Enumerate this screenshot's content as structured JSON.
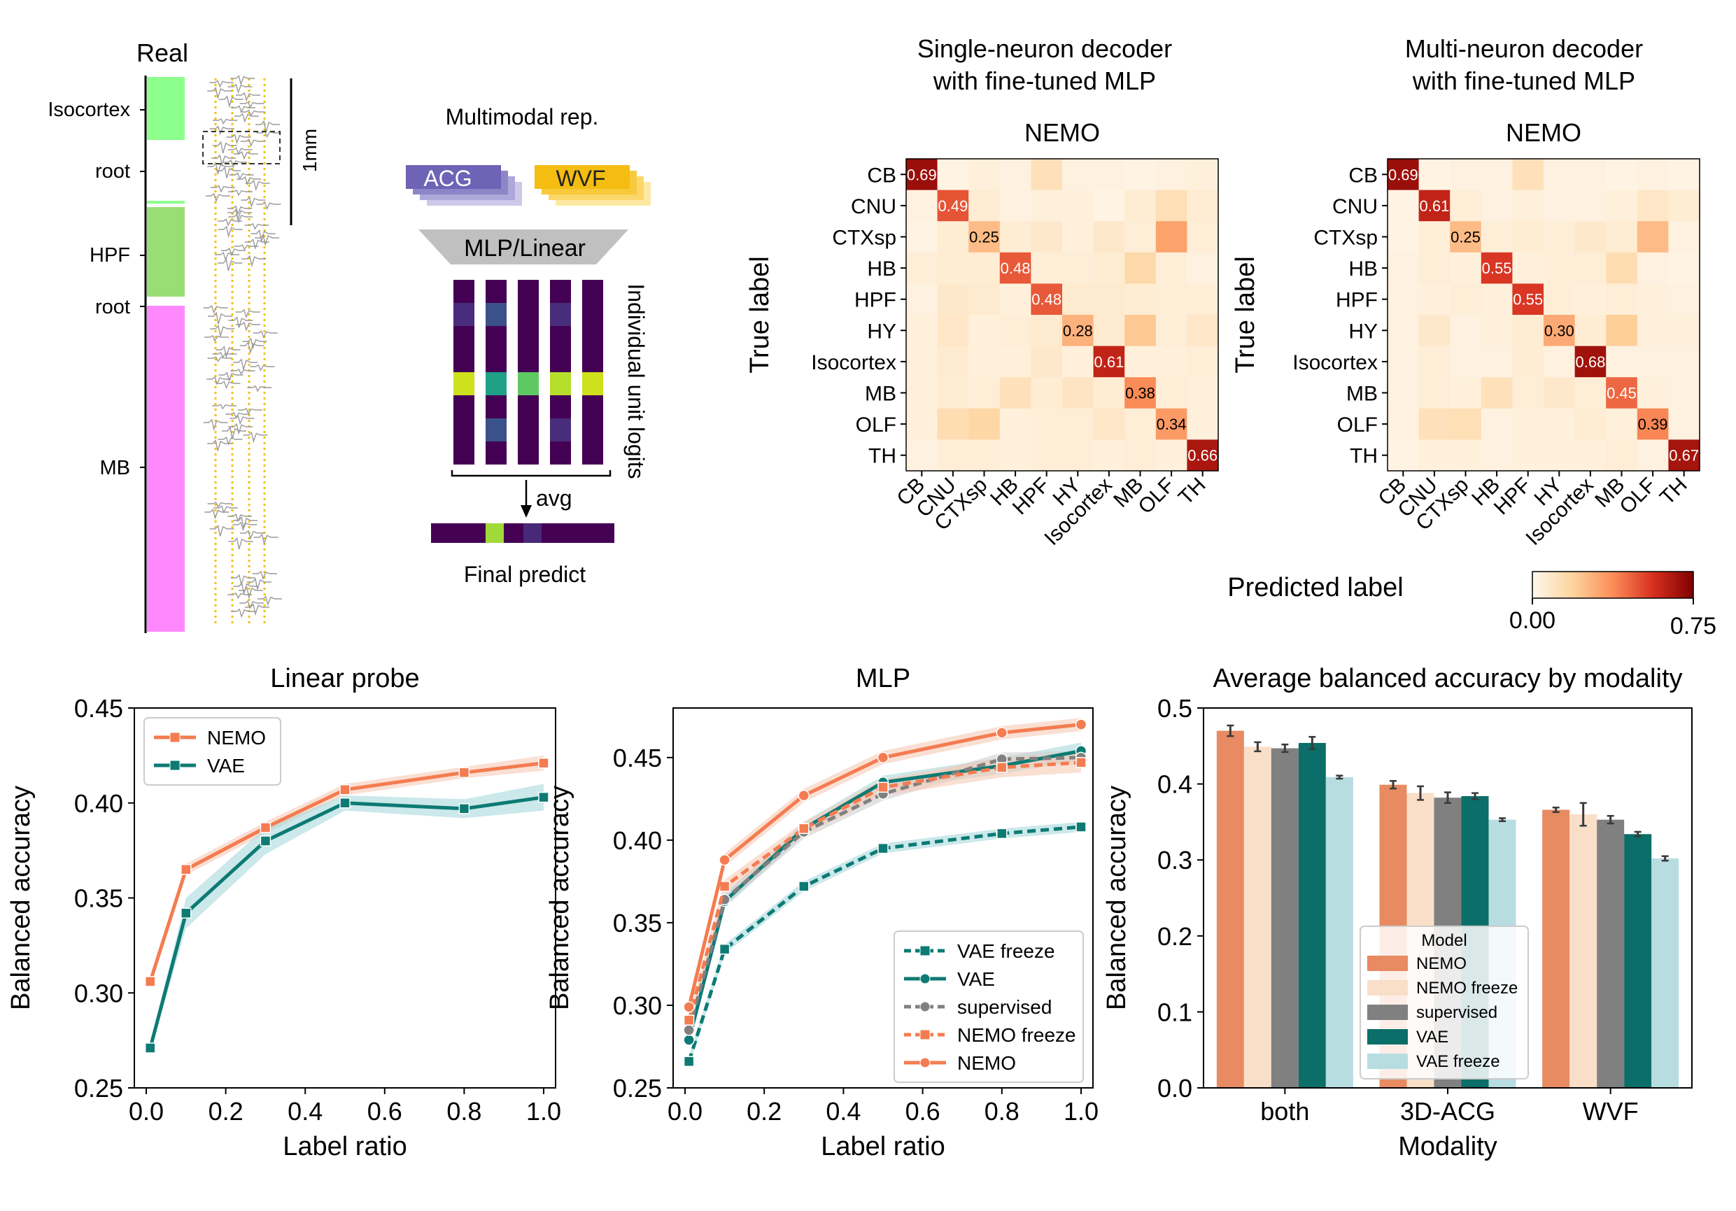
{
  "colors": {
    "nemo": "#f47c50",
    "nemo_light": "#f6d9c8",
    "vae": "#0d7a74",
    "vae_light": "#a9d8dc",
    "supervised": "#808080",
    "nemo_bar": "#e88a62",
    "nemo_freeze_bar": "#f9dfc7",
    "supervised_bar": "#808080",
    "vae_bar": "#0c6e68",
    "vae_freeze_bar": "#b7dde1",
    "isocortex": "#8cff8c",
    "hpf": "#99dd77",
    "mb": "#ff88ff",
    "yellow": "#f2c100",
    "acg": "#6e63b5",
    "wvf": "#f5bc12",
    "viridis_dark": "#440154"
  },
  "schematic": {
    "real_label": "Real",
    "regions": [
      "Isocortex",
      "root",
      "HPF",
      "root",
      "MB"
    ],
    "scale_label": "1mm",
    "multimodal_label": "Multimodal rep.",
    "acg_label": "ACG",
    "wvf_label": "WVF",
    "mlp_label": "MLP/Linear",
    "logits_label": "Individual unit logits",
    "avg_label": "avg",
    "final_label": "Final predict"
  },
  "chart_data": [
    {
      "type": "heatmap",
      "title": "Single-neuron decoder\nwith fine-tuned MLP",
      "subtitle": "NEMO",
      "ylabel": "True label",
      "labels": [
        "CB",
        "CNU",
        "CTXsp",
        "HB",
        "HPF",
        "HY",
        "Isocortex",
        "MB",
        "OLF",
        "TH"
      ],
      "matrix": [
        [
          0.69,
          0.02,
          0.04,
          0.03,
          0.12,
          0.03,
          0.03,
          0.02,
          0.03,
          0.04
        ],
        [
          0.03,
          0.49,
          0.06,
          0.03,
          0.04,
          0.04,
          0.02,
          0.06,
          0.13,
          0.06
        ],
        [
          0.02,
          0.06,
          0.25,
          0.06,
          0.08,
          0.04,
          0.08,
          0.05,
          0.32,
          0.05
        ],
        [
          0.05,
          0.06,
          0.06,
          0.48,
          0.05,
          0.05,
          0.06,
          0.16,
          0.05,
          0.03
        ],
        [
          0.03,
          0.08,
          0.07,
          0.04,
          0.48,
          0.07,
          0.07,
          0.06,
          0.05,
          0.05
        ],
        [
          0.04,
          0.09,
          0.04,
          0.05,
          0.07,
          0.28,
          0.07,
          0.22,
          0.05,
          0.09
        ],
        [
          0.04,
          0.07,
          0.04,
          0.04,
          0.08,
          0.04,
          0.61,
          0.04,
          0.04,
          0.05
        ],
        [
          0.04,
          0.06,
          0.05,
          0.12,
          0.06,
          0.1,
          0.06,
          0.38,
          0.05,
          0.04
        ],
        [
          0.04,
          0.14,
          0.17,
          0.04,
          0.05,
          0.05,
          0.09,
          0.05,
          0.34,
          0.04
        ],
        [
          0.03,
          0.05,
          0.05,
          0.04,
          0.05,
          0.05,
          0.04,
          0.05,
          0.04,
          0.66
        ]
      ],
      "diagonal_labels": [
        "0.69",
        "0.49",
        "0.25",
        "0.48",
        "0.48",
        "0.28",
        "0.61",
        "0.38",
        "0.34",
        "0.66"
      ]
    },
    {
      "type": "heatmap",
      "title": "Multi-neuron decoder\nwith fine-tuned MLP",
      "subtitle": "NEMO",
      "ylabel": "True label",
      "labels": [
        "CB",
        "CNU",
        "CTXsp",
        "HB",
        "HPF",
        "HY",
        "Isocortex",
        "MB",
        "OLF",
        "TH"
      ],
      "matrix": [
        [
          0.69,
          0.02,
          0.03,
          0.03,
          0.12,
          0.03,
          0.03,
          0.02,
          0.03,
          0.02
        ],
        [
          0.02,
          0.61,
          0.05,
          0.03,
          0.04,
          0.03,
          0.03,
          0.04,
          0.09,
          0.06
        ],
        [
          0.02,
          0.05,
          0.25,
          0.05,
          0.06,
          0.05,
          0.08,
          0.06,
          0.25,
          0.03
        ],
        [
          0.03,
          0.05,
          0.04,
          0.55,
          0.04,
          0.05,
          0.05,
          0.14,
          0.03,
          0.02
        ],
        [
          0.03,
          0.04,
          0.05,
          0.04,
          0.55,
          0.05,
          0.04,
          0.05,
          0.04,
          0.03
        ],
        [
          0.03,
          0.08,
          0.03,
          0.04,
          0.06,
          0.3,
          0.06,
          0.2,
          0.04,
          0.04
        ],
        [
          0.03,
          0.05,
          0.03,
          0.03,
          0.06,
          0.03,
          0.68,
          0.03,
          0.03,
          0.03
        ],
        [
          0.03,
          0.05,
          0.04,
          0.12,
          0.05,
          0.08,
          0.05,
          0.45,
          0.04,
          0.03
        ],
        [
          0.03,
          0.12,
          0.13,
          0.03,
          0.04,
          0.04,
          0.06,
          0.04,
          0.39,
          0.03
        ],
        [
          0.02,
          0.04,
          0.04,
          0.03,
          0.04,
          0.04,
          0.04,
          0.05,
          0.03,
          0.67
        ]
      ],
      "diagonal_labels": [
        "0.69",
        "0.61",
        "0.25",
        "0.55",
        "0.55",
        "0.30",
        "0.68",
        "0.45",
        "0.39",
        "0.67"
      ]
    },
    {
      "type": "colorbar",
      "xlabel": "Predicted label",
      "range": [
        0.0,
        0.75
      ],
      "tick_labels": [
        "0.00",
        "0.75"
      ]
    },
    {
      "type": "line",
      "title": "Linear probe",
      "xlabel": "Label ratio",
      "ylabel": "Balanced accuracy",
      "xlim": [
        -0.03,
        1.03
      ],
      "ylim": [
        0.25,
        0.45
      ],
      "xticks": [
        0.0,
        0.2,
        0.4,
        0.6,
        0.8,
        1.0
      ],
      "xtick_labels": [
        "0.0",
        "0.2",
        "0.4",
        "0.6",
        "0.8",
        "1.0"
      ],
      "yticks": [
        0.25,
        0.3,
        0.35,
        0.4,
        0.45
      ],
      "ytick_labels": [
        "0.25",
        "0.30",
        "0.35",
        "0.40",
        "0.45"
      ],
      "legend_position": "upper-left",
      "x": [
        0.01,
        0.1,
        0.3,
        0.5,
        0.8,
        1.0
      ],
      "series": [
        {
          "name": "NEMO",
          "color": "#f47c50",
          "band": "#f6c9b6",
          "dash": "",
          "marker": "square",
          "values": [
            0.306,
            0.365,
            0.387,
            0.407,
            0.416,
            0.421
          ],
          "err": [
            0.002,
            0.003,
            0.003,
            0.003,
            0.003,
            0.004
          ]
        },
        {
          "name": "VAE",
          "color": "#0d7a74",
          "band": "#a9d8dc",
          "dash": "",
          "marker": "square",
          "values": [
            0.271,
            0.342,
            0.38,
            0.4,
            0.397,
            0.403
          ],
          "err": [
            0.002,
            0.008,
            0.007,
            0.004,
            0.005,
            0.007
          ]
        }
      ]
    },
    {
      "type": "line",
      "title": "MLP",
      "xlabel": "Label ratio",
      "ylabel": "Balanced accuracy",
      "xlim": [
        -0.03,
        1.03
      ],
      "ylim": [
        0.25,
        0.48
      ],
      "xticks": [
        0.0,
        0.2,
        0.4,
        0.6,
        0.8,
        1.0
      ],
      "xtick_labels": [
        "0.0",
        "0.2",
        "0.4",
        "0.6",
        "0.8",
        "1.0"
      ],
      "yticks": [
        0.25,
        0.3,
        0.35,
        0.4,
        0.45
      ],
      "ytick_labels": [
        "0.25",
        "0.30",
        "0.35",
        "0.40",
        "0.45"
      ],
      "legend_position": "lower-right",
      "x": [
        0.01,
        0.1,
        0.3,
        0.5,
        0.8,
        1.0
      ],
      "series": [
        {
          "name": "VAE freeze",
          "color": "#0d7a74",
          "band": "#a9d8dc",
          "dash": "12,7",
          "marker": "square",
          "values": [
            0.266,
            0.334,
            0.372,
            0.395,
            0.404,
            0.408
          ],
          "err": [
            0.003,
            0.003,
            0.003,
            0.003,
            0.003,
            0.003
          ]
        },
        {
          "name": "VAE",
          "color": "#0d7a74",
          "band": "#a9d8dc",
          "dash": "",
          "marker": "circle",
          "values": [
            0.279,
            0.363,
            0.407,
            0.435,
            0.445,
            0.454
          ],
          "err": [
            0.003,
            0.004,
            0.004,
            0.004,
            0.005,
            0.005
          ]
        },
        {
          "name": "supervised",
          "color": "#808080",
          "band": "#cfcfcf",
          "dash": "12,7",
          "marker": "circle",
          "values": [
            0.285,
            0.364,
            0.405,
            0.428,
            0.449,
            0.45
          ],
          "err": [
            0.003,
            0.004,
            0.004,
            0.004,
            0.004,
            0.004
          ]
        },
        {
          "name": "NEMO freeze",
          "color": "#f47c50",
          "band": "#f6c9b6",
          "dash": "12,7",
          "marker": "square",
          "values": [
            0.291,
            0.372,
            0.407,
            0.432,
            0.444,
            0.447
          ],
          "err": [
            0.003,
            0.004,
            0.004,
            0.005,
            0.006,
            0.006
          ]
        },
        {
          "name": "NEMO",
          "color": "#f47c50",
          "band": "#f6c9b6",
          "dash": "",
          "marker": "circle",
          "values": [
            0.299,
            0.388,
            0.427,
            0.45,
            0.465,
            0.47
          ],
          "err": [
            0.003,
            0.004,
            0.004,
            0.004,
            0.004,
            0.004
          ]
        }
      ]
    },
    {
      "type": "bar",
      "title": "Average balanced accuracy by modality",
      "xlabel": "Modality",
      "ylabel": "Balanced accuracy",
      "categories": [
        "both",
        "3D-ACG",
        "WVF"
      ],
      "ylim": [
        0.0,
        0.5
      ],
      "yticks": [
        0.0,
        0.1,
        0.2,
        0.3,
        0.4,
        0.5
      ],
      "ytick_labels": [
        "0.0",
        "0.1",
        "0.2",
        "0.3",
        "0.4",
        "0.5"
      ],
      "legend_title": "Model",
      "legend_position": "lower-center",
      "series": [
        {
          "name": "NEMO",
          "color": "#e88a62",
          "values": [
            0.47,
            0.399,
            0.366
          ],
          "err": [
            0.007,
            0.005,
            0.003
          ]
        },
        {
          "name": "NEMO freeze",
          "color": "#f9dfc7",
          "values": [
            0.449,
            0.388,
            0.36
          ],
          "err": [
            0.006,
            0.009,
            0.015
          ]
        },
        {
          "name": "supervised",
          "color": "#808080",
          "values": [
            0.447,
            0.382,
            0.353
          ],
          "err": [
            0.005,
            0.007,
            0.005
          ]
        },
        {
          "name": "VAE",
          "color": "#0c6e68",
          "values": [
            0.454,
            0.384,
            0.334
          ],
          "err": [
            0.008,
            0.004,
            0.003
          ]
        },
        {
          "name": "VAE freeze",
          "color": "#b7dde1",
          "values": [
            0.409,
            0.353,
            0.302
          ],
          "err": [
            0.002,
            0.002,
            0.003
          ]
        }
      ]
    }
  ]
}
